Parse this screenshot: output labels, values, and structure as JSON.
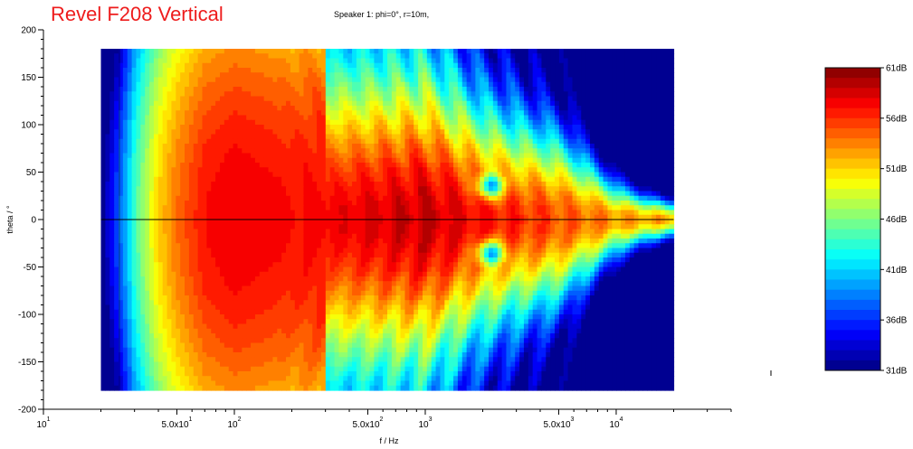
{
  "chart_data": {
    "type": "heatmap",
    "title": "Revel F208 Vertical",
    "subtitle": "Speaker 1: phi=0°, r=10m,",
    "xlabel": "f / Hz",
    "ylabel": "theta / °",
    "x_scale": "log",
    "xlim": [
      10,
      40000
    ],
    "ylim": [
      -200,
      200
    ],
    "data_x_range": [
      20,
      20000
    ],
    "data_y_range": [
      -180,
      180
    ],
    "x_ticks_major": [
      {
        "base": "10",
        "exp": "1",
        "value": 10
      },
      {
        "base": "5.0x10",
        "exp": "1",
        "value": 50
      },
      {
        "base": "10",
        "exp": "2",
        "value": 100
      },
      {
        "base": "5.0x10",
        "exp": "2",
        "value": 500
      },
      {
        "base": "10",
        "exp": "3",
        "value": 1000
      },
      {
        "base": "5.0x10",
        "exp": "3",
        "value": 5000
      },
      {
        "base": "10",
        "exp": "4",
        "value": 10000
      }
    ],
    "y_ticks": [
      "200",
      "150",
      "100",
      "50",
      "0",
      "-50",
      "-100",
      "-150",
      "-200"
    ],
    "y_tick_values": [
      200,
      150,
      100,
      50,
      0,
      -50,
      -100,
      -150,
      -200
    ],
    "colorbar": {
      "min": 31,
      "max": 61,
      "labels": [
        "61dB",
        "56dB",
        "51dB",
        "46dB",
        "41dB",
        "36dB",
        "31dB"
      ],
      "values": [
        61,
        56,
        51,
        46,
        41,
        36,
        31
      ],
      "levels": 30
    },
    "ridge_freqs_hz": [
      300,
      1000,
      2000,
      5000,
      10000,
      15000,
      20000
    ],
    "ridge_halfwidth_deg": [
      180,
      170,
      125,
      95,
      40,
      25,
      20
    ],
    "level_profile": {
      "freqs_hz": [
        20,
        23,
        27,
        30,
        35,
        40,
        50,
        70,
        100,
        200,
        500,
        1000,
        2000,
        5000,
        10000,
        20000
      ],
      "db": [
        31,
        35,
        40,
        44,
        48,
        51,
        54,
        57,
        58,
        57,
        58,
        59,
        57,
        55,
        53,
        52
      ]
    },
    "reference_line_deg": 0
  }
}
